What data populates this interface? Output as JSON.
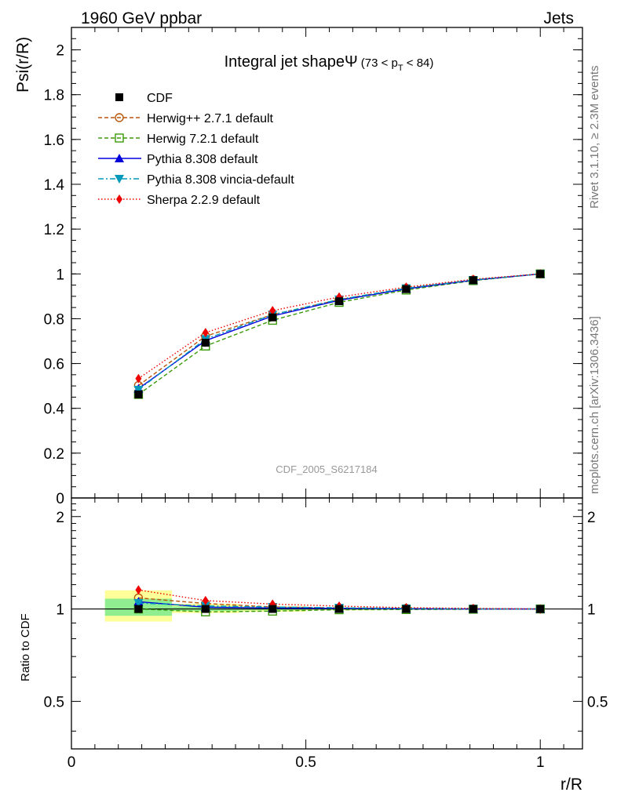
{
  "header": {
    "left": "1960 GeV ppbar",
    "right": "Jets",
    "rivet_label": "Rivet 3.1.10, ≥ 2.3M events",
    "mcplots_label": "mcplots.cern.ch [arXiv:1306.3436]",
    "analysis_id": "CDF_2005_S6217184"
  },
  "chart_data": {
    "type": "line",
    "title": {
      "main": "Integral jet shape",
      "symbol": "Ψ",
      "range_open": "(73 < p",
      "range_sub": "T",
      "range_close": " < 84)"
    },
    "xlabel": "r/R",
    "xlim": [
      0,
      1.09
    ],
    "x_ticks": [
      "0",
      "0.5",
      "1"
    ],
    "x": [
      0.143,
      0.286,
      0.429,
      0.571,
      0.714,
      0.857,
      1.0
    ],
    "main_panel": {
      "ylabel": "Psi(r/R)",
      "ylim": [
        0,
        2.1
      ],
      "y_ticks": [
        "0",
        "0.2",
        "0.4",
        "0.6",
        "0.8",
        "1",
        "1.2",
        "1.4",
        "1.6",
        "1.8",
        "2"
      ]
    },
    "ratio_panel": {
      "ylabel": "Ratio to CDF",
      "ylim": [
        0.35,
        2.3
      ],
      "log_scale": true,
      "y_ticks": [
        "0.5",
        "1",
        "2"
      ],
      "band_inner_color": "#90ee90",
      "band_outer_color": "#ffff99",
      "band_inner": [
        [
          0.95,
          1.08
        ],
        [
          0.985,
          1.02
        ],
        [
          0.99,
          1.01
        ],
        [
          0.995,
          1.005
        ],
        [
          0.997,
          1.003
        ],
        [
          0.998,
          1.002
        ],
        [
          0.999,
          1.001
        ]
      ],
      "band_outer": [
        [
          0.91,
          1.15
        ],
        [
          0.97,
          1.04
        ],
        [
          0.98,
          1.02
        ],
        [
          0.99,
          1.01
        ],
        [
          0.994,
          1.006
        ],
        [
          0.996,
          1.004
        ],
        [
          0.998,
          1.002
        ]
      ],
      "band_edges": [
        0.0715,
        0.2145,
        0.3575,
        0.5,
        0.6425,
        0.7855,
        0.9285,
        1.0715
      ]
    },
    "series": [
      {
        "name": "CDF",
        "color": "#000000",
        "marker": "square",
        "line": "none",
        "values": [
          0.462,
          0.693,
          0.806,
          0.878,
          0.932,
          0.972,
          1.0
        ]
      },
      {
        "name": "Herwig++ 2.7.1 default",
        "color": "#b8560b",
        "marker": "circle-open",
        "line": "dashed",
        "values": [
          0.502,
          0.722,
          0.818,
          0.885,
          0.936,
          0.973,
          1.0
        ]
      },
      {
        "name": "Herwig 7.2.1 default",
        "color": "#3a9a0a",
        "marker": "square-open",
        "line": "dashed",
        "values": [
          0.462,
          0.678,
          0.793,
          0.873,
          0.928,
          0.97,
          1.0
        ]
      },
      {
        "name": "Pythia 8.308 default",
        "color": "#0000dd",
        "marker": "triangle-up",
        "line": "solid",
        "values": [
          0.488,
          0.702,
          0.812,
          0.882,
          0.933,
          0.972,
          1.0
        ]
      },
      {
        "name": "Pythia 8.308 vincia-default",
        "color": "#0099bb",
        "marker": "triangle-down",
        "line": "dashdot",
        "values": [
          0.483,
          0.709,
          0.818,
          0.886,
          0.936,
          0.973,
          1.0
        ]
      },
      {
        "name": "Sherpa 2.2.9 default",
        "color": "#ee0000",
        "marker": "diamond",
        "line": "dotted",
        "values": [
          0.533,
          0.738,
          0.836,
          0.897,
          0.941,
          0.976,
          1.0
        ]
      }
    ]
  }
}
